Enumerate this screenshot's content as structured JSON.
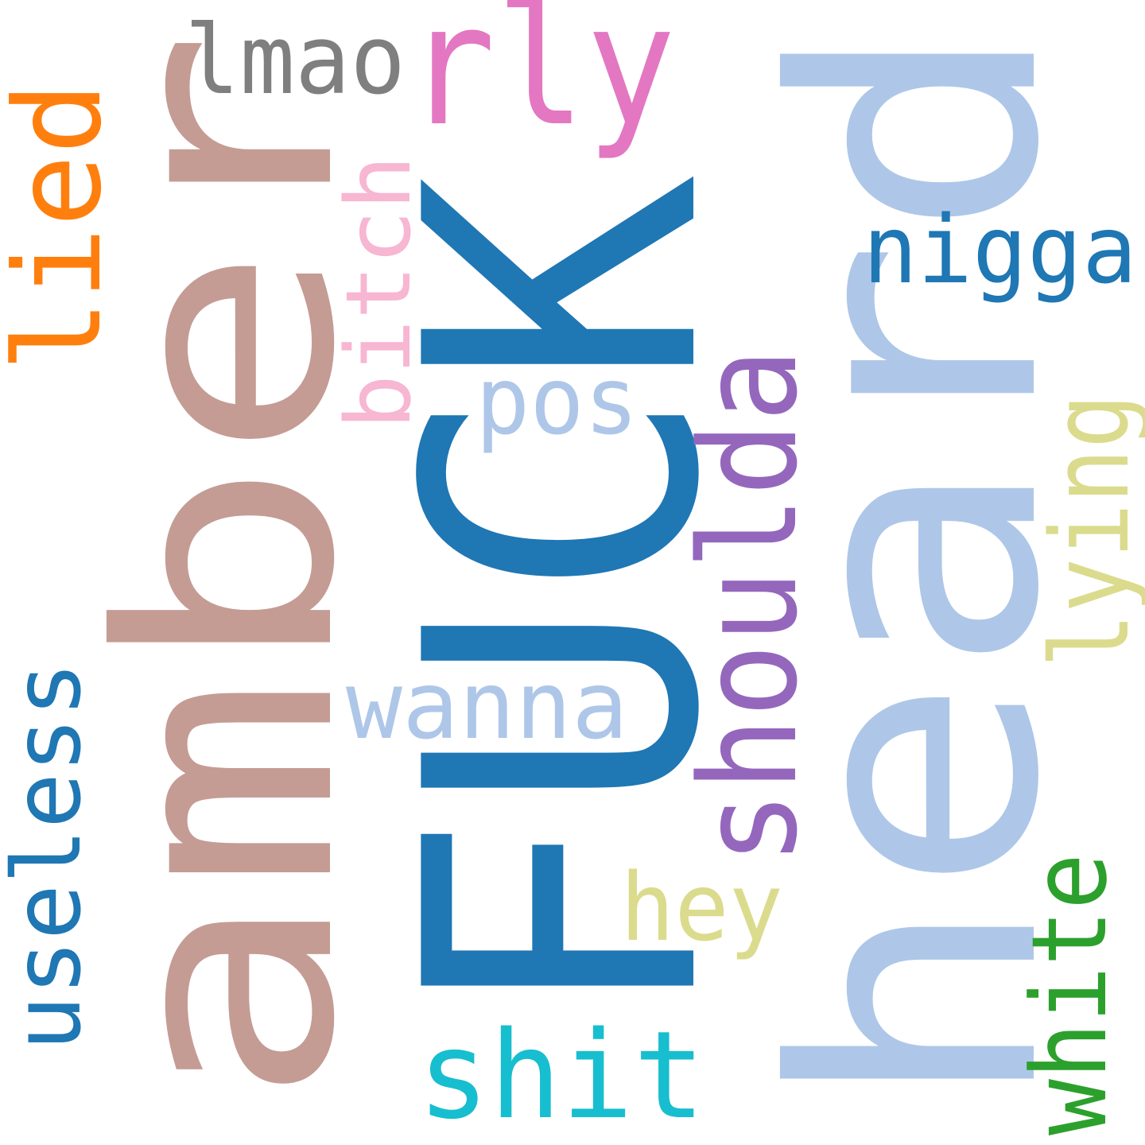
{
  "words": [
    {
      "id": "fuck",
      "text": "FUCK",
      "color": "#1f77b4"
    },
    {
      "id": "amber",
      "text": "amber",
      "color": "#c49c94"
    },
    {
      "id": "heard",
      "text": "heard",
      "color": "#aec7e8"
    },
    {
      "id": "lied",
      "text": "lied",
      "color": "#ff7f0e"
    },
    {
      "id": "lmao",
      "text": "lmao",
      "color": "#7f7f7f"
    },
    {
      "id": "rly",
      "text": "rly",
      "color": "#e377c2"
    },
    {
      "id": "bitch",
      "text": "bitch",
      "color": "#f7b6d2"
    },
    {
      "id": "pos",
      "text": "pos",
      "color": "#aec7e8"
    },
    {
      "id": "nigga",
      "text": "nigga",
      "color": "#1f77b4"
    },
    {
      "id": "shoulda",
      "text": "shoulda",
      "color": "#9467bd"
    },
    {
      "id": "lying",
      "text": "lying",
      "color": "#dbdb8d"
    },
    {
      "id": "wanna",
      "text": "wanna",
      "color": "#aec7e8"
    },
    {
      "id": "useless",
      "text": "useless",
      "color": "#1f77b4"
    },
    {
      "id": "hey",
      "text": "hey",
      "color": "#dbdb8d"
    },
    {
      "id": "white",
      "text": "white",
      "color": "#2ca02c"
    },
    {
      "id": "shit",
      "text": "shit",
      "color": "#17becf"
    }
  ]
}
